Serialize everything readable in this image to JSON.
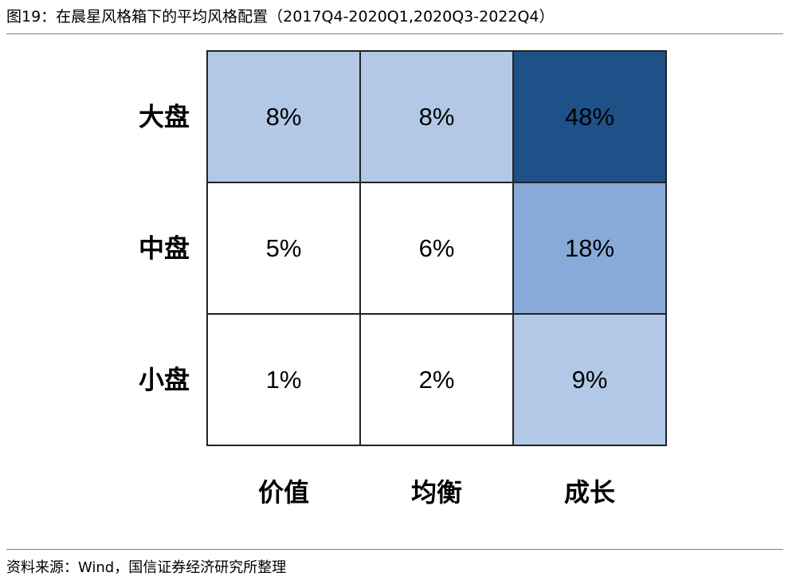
{
  "figure": {
    "title": "图19：在晨星风格箱下的平均风格配置（2017Q4-2020Q1,2020Q3-2022Q4）",
    "source": "资料来源：Wind，国信证券经济研究所整理"
  },
  "chart_data": {
    "type": "heatmap",
    "rows": [
      "大盘",
      "中盘",
      "小盘"
    ],
    "columns": [
      "价值",
      "均衡",
      "成长"
    ],
    "values": [
      [
        8,
        8,
        48
      ],
      [
        5,
        6,
        18
      ],
      [
        1,
        2,
        9
      ]
    ],
    "value_labels": [
      [
        "8%",
        "8%",
        "48%"
      ],
      [
        "5%",
        "6%",
        "18%"
      ],
      [
        "1%",
        "2%",
        "9%"
      ]
    ],
    "unit": "%",
    "colors": {
      "dark": "#1f5189",
      "medium": "#87aad9",
      "light": "#b2c8e6",
      "empty": "#ffffff",
      "border": "#222222"
    }
  }
}
